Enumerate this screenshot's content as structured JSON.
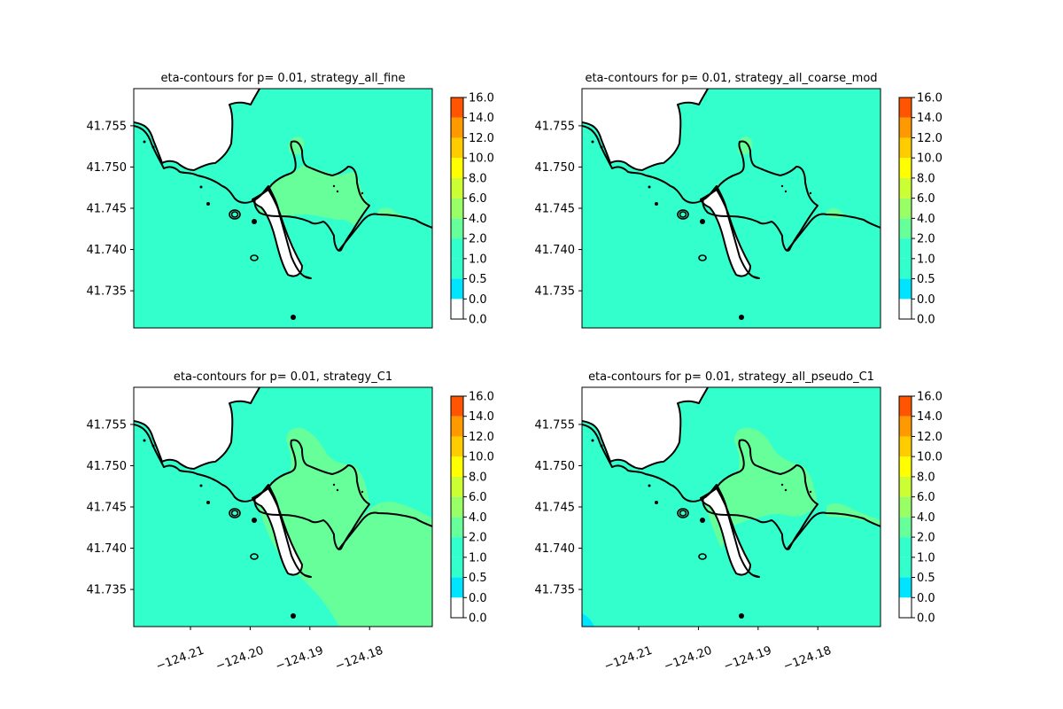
{
  "chart_data": [
    {
      "type": "contour",
      "title": "eta-contours for p= 0.01, strategy_all_fine",
      "xlim": [
        -124.2195,
        -124.1695
      ],
      "ylim": [
        41.7305,
        41.7595
      ],
      "x_ticks": [],
      "y_ticks": [
        41.735,
        41.74,
        41.745,
        41.75,
        41.755
      ],
      "y_tick_labels": [
        "41.735",
        "41.740",
        "41.745",
        "41.750",
        "41.755"
      ],
      "base_level": "1.0-2.0",
      "inundation_level": "2.0-4.0",
      "inundation_extent": "harbor",
      "colorbar_levels": [
        "0.0",
        "0.0",
        "0.5",
        "1.0",
        "2.0",
        "4.0",
        "6.0",
        "8.0",
        "10.0",
        "12.0",
        "14.0",
        "16.0"
      ]
    },
    {
      "type": "contour",
      "title": "eta-contours for p= 0.01, strategy_all_coarse_mod",
      "xlim": [
        -124.2195,
        -124.1695
      ],
      "ylim": [
        41.7305,
        41.7595
      ],
      "x_ticks": [],
      "y_ticks": [
        41.735,
        41.74,
        41.745,
        41.75,
        41.755
      ],
      "y_tick_labels": [
        "41.735",
        "41.740",
        "41.745",
        "41.750",
        "41.755"
      ],
      "base_level": "1.0-2.0",
      "inundation_level": "2.0-4.0",
      "inundation_extent": "small",
      "colorbar_levels": [
        "0.0",
        "0.0",
        "0.5",
        "1.0",
        "2.0",
        "4.0",
        "6.0",
        "8.0",
        "10.0",
        "12.0",
        "14.0",
        "16.0"
      ]
    },
    {
      "type": "contour",
      "title": "eta-contours for p= 0.01, strategy_C1",
      "xlim": [
        -124.2195,
        -124.1695
      ],
      "ylim": [
        41.7305,
        41.7595
      ],
      "x_ticks": [
        -124.21,
        -124.2,
        -124.19,
        -124.18
      ],
      "x_tick_labels": [
        "−124.21",
        "−124.20",
        "−124.19",
        "−124.18"
      ],
      "y_ticks": [
        41.735,
        41.74,
        41.745,
        41.75,
        41.755
      ],
      "y_tick_labels": [
        "41.735",
        "41.740",
        "41.745",
        "41.750",
        "41.755"
      ],
      "base_level": "1.0-2.0",
      "inundation_level": "2.0-4.0",
      "inundation_extent": "large",
      "colorbar_levels": [
        "0.0",
        "0.0",
        "0.5",
        "1.0",
        "2.0",
        "4.0",
        "6.0",
        "8.0",
        "10.0",
        "12.0",
        "14.0",
        "16.0"
      ]
    },
    {
      "type": "contour",
      "title": "eta-contours for p= 0.01, strategy_all_pseudo_C1",
      "xlim": [
        -124.2195,
        -124.1695
      ],
      "ylim": [
        41.7305,
        41.7595
      ],
      "x_ticks": [
        -124.21,
        -124.2,
        -124.19,
        -124.18
      ],
      "x_tick_labels": [
        "−124.21",
        "−124.20",
        "−124.19",
        "−124.18"
      ],
      "y_ticks": [
        41.735,
        41.74,
        41.745,
        41.75,
        41.755
      ],
      "y_tick_labels": [
        "41.735",
        "41.740",
        "41.745",
        "41.750",
        "41.755"
      ],
      "base_level": "1.0-2.0",
      "inundation_level": "2.0-4.0",
      "inundation_extent": "medium",
      "colorbar_levels": [
        "0.0",
        "0.0",
        "0.5",
        "1.0",
        "2.0",
        "4.0",
        "6.0",
        "8.0",
        "10.0",
        "12.0",
        "14.0",
        "16.0"
      ]
    }
  ],
  "colors": {
    "levels": {
      "0.0-0.0": "#ffffff",
      "0.0-0.5": "#00e5ff",
      "0.5-1.0": "#00ffea",
      "1.0-2.0": "#33ffcc",
      "2.0-4.0": "#66ff99",
      "4.0-6.0": "#ccff33",
      "6.0-8.0": "#ffff00",
      "8.0-10.0": "#ffcc00",
      "10.0-12.0": "#ff9900",
      "12.0-14.0": "#ff5500",
      "14.0-16.0": "#ee0000"
    },
    "colorbar_bands": [
      "#ffffff",
      "#00e5ff",
      "#33ffcc",
      "#33ffcc",
      "#66ff99",
      "#99ff66",
      "#ccff33",
      "#ffff00",
      "#ffcc00",
      "#ff9900",
      "#ff5500",
      "#ee0000"
    ],
    "coastline": "#000000",
    "land": "#ffffff"
  }
}
